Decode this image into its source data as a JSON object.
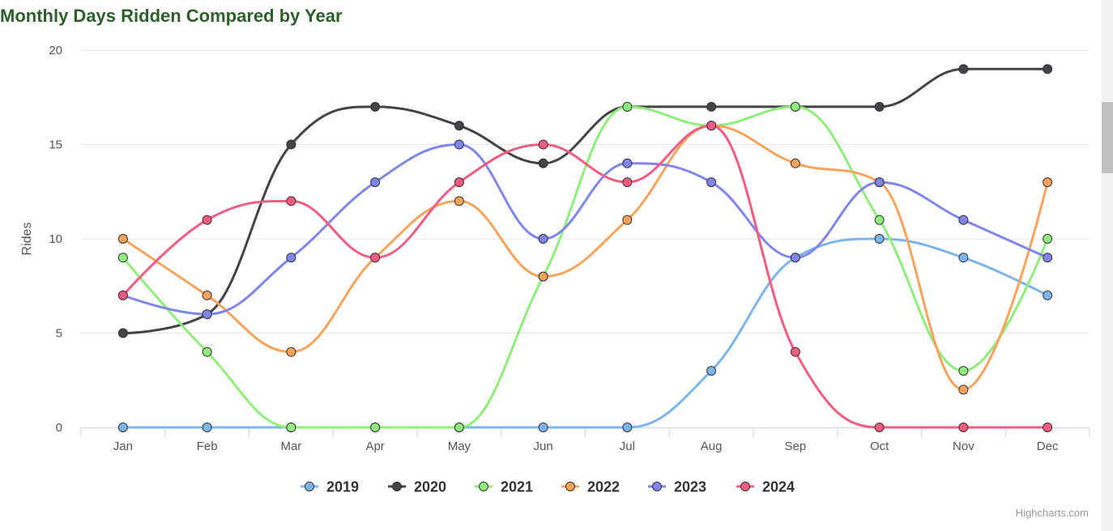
{
  "chart_data": {
    "type": "line",
    "title": "Monthly Days Ridden Compared by Year",
    "xlabel": "",
    "ylabel": "Rides",
    "ylim": [
      0,
      20
    ],
    "yticks": [
      0,
      5,
      10,
      15,
      20
    ],
    "grid": true,
    "legend_position": "bottom-center",
    "categories": [
      "Jan",
      "Feb",
      "Mar",
      "Apr",
      "May",
      "Jun",
      "Jul",
      "Aug",
      "Sep",
      "Oct",
      "Nov",
      "Dec"
    ],
    "series": [
      {
        "name": "2019",
        "color": "#7cb5ec",
        "values": [
          0,
          0,
          0,
          0,
          0,
          0,
          0,
          3,
          9,
          10,
          9,
          7
        ]
      },
      {
        "name": "2020",
        "color": "#434348",
        "values": [
          5,
          6,
          15,
          17,
          16,
          14,
          17,
          17,
          17,
          17,
          19,
          19
        ]
      },
      {
        "name": "2021",
        "color": "#90ed7d",
        "values": [
          9,
          4,
          0,
          0,
          0,
          8,
          17,
          16,
          17,
          11,
          3,
          10
        ]
      },
      {
        "name": "2022",
        "color": "#f7a35c",
        "values": [
          10,
          7,
          4,
          9,
          12,
          8,
          11,
          16,
          14,
          13,
          2,
          13
        ]
      },
      {
        "name": "2023",
        "color": "#8085e9",
        "values": [
          7,
          6,
          9,
          13,
          15,
          10,
          14,
          13,
          9,
          13,
          11,
          9
        ]
      },
      {
        "name": "2024",
        "color": "#f15c80",
        "values": [
          7,
          11,
          12,
          9,
          13,
          15,
          13,
          16,
          4,
          0,
          0,
          0
        ]
      }
    ],
    "credits": "Highcharts.com"
  },
  "colors": {
    "title": "#2e5e2a",
    "grid": "#e6e6e6",
    "axis": "#ccd6eb"
  }
}
